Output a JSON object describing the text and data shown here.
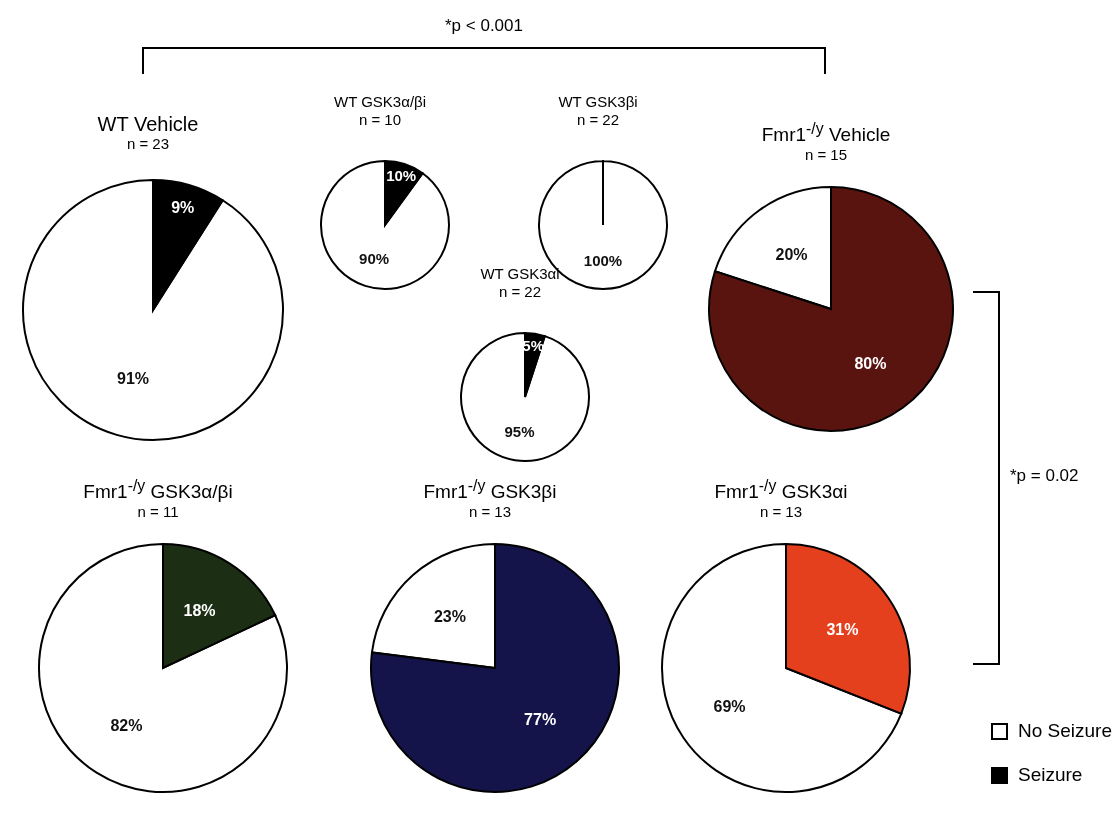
{
  "chart_data": [
    {
      "type": "pie",
      "title": "WT Vehicle",
      "subtitle": "n = 23",
      "categories": [
        "No Seizure",
        "Seizure"
      ],
      "values": [
        91,
        9
      ],
      "colors": [
        "#ffffff",
        "#000000"
      ],
      "value_labels": [
        "91%",
        "9%"
      ],
      "legend": "bottom right",
      "annotations": [
        "*p < 0.001"
      ]
    },
    {
      "type": "pie",
      "title": "WT GSK3α/βi",
      "subtitle": "n = 10",
      "categories": [
        null,
        null
      ],
      "values": [
        90,
        10
      ],
      "colors": [
        "#ffffff",
        "#000000"
      ],
      "value_labels": [
        "90%",
        "10%"
      ]
    },
    {
      "type": "pie",
      "title": "WT GSK3βi",
      "subtitle": "n = 22",
      "categories": [
        null,
        null
      ],
      "values": [
        100,
        0
      ],
      "colors": [
        "#ffffff",
        "#000000"
      ],
      "value_labels": [
        "100%",
        null
      ]
    },
    {
      "type": "pie",
      "title": "Fmr1$^{-/y}$ Vehicle",
      "subtitle": "n = 15",
      "categories": [
        null,
        null
      ],
      "values": [
        20,
        80
      ],
      "colors": [
        "#ffffff",
        "#5a1410"
      ],
      "value_labels": [
        "20%",
        "80%"
      ],
      "annotations": [
        "*p = 0.02"
      ]
    },
    {
      "type": "pie",
      "title": "WT GSK3αi",
      "subtitle": "n = 22",
      "categories": [
        null,
        null
      ],
      "values": [
        95,
        5
      ],
      "colors": [
        "#ffffff",
        "#000000"
      ],
      "value_labels": [
        "95%",
        "5%"
      ]
    },
    {
      "type": "pie",
      "title": "Fmr1$^{-/y}$ GSK3α/βi",
      "subtitle": "n = 11",
      "categories": [
        null,
        null
      ],
      "values": [
        82,
        18
      ],
      "colors": [
        "#ffffff",
        "#1c2e14"
      ],
      "value_labels": [
        "82%",
        "18%"
      ]
    },
    {
      "type": "pie",
      "title": "Fmr1$^{-/y}$ GSK3βi",
      "subtitle": "n = 13",
      "categories": [
        null,
        null
      ],
      "values": [
        23,
        77
      ],
      "colors": [
        "#ffffff",
        "#14144a"
      ],
      "value_labels": [
        "23%",
        "77%"
      ]
    },
    {
      "type": "pie",
      "title": "Fmr1$^{-/y}$ GSK3αi",
      "subtitle": "n = 13",
      "categories": [
        null,
        null
      ],
      "values": [
        69,
        31
      ],
      "colors": [
        "#ffffff",
        "#e5401e"
      ],
      "value_labels": [
        "69%",
        "31%"
      ]
    }
  ]
}
